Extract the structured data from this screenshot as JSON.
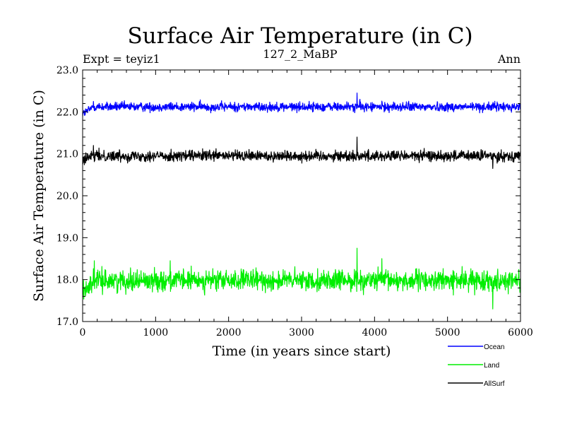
{
  "chart_data": {
    "type": "line",
    "title": "Surface Air Temperature (in C)",
    "subtitle": "127_2_MaBP",
    "expt_label": "Expt = teyiz1",
    "season_label": "Ann",
    "xlabel": "Time (in years since start)",
    "ylabel": "Surface Air Temperature (in C)",
    "xlim": [
      0,
      6000
    ],
    "ylim": [
      17.0,
      23.0
    ],
    "x_ticks": [
      0,
      1000,
      2000,
      3000,
      4000,
      5000,
      6000
    ],
    "y_ticks": [
      "17.0",
      "18.0",
      "19.0",
      "20.0",
      "21.0",
      "22.0",
      "23.0"
    ],
    "grid": false,
    "legend_position": "bottom-right",
    "series": [
      {
        "name": "Ocean",
        "color": "#0000ff",
        "start_value": 21.95,
        "mean": 22.12,
        "noise_amplitude": 0.1,
        "x_start": 0,
        "x_end": 6000,
        "notable_points": [
          [
            0,
            21.9
          ],
          [
            150,
            22.25
          ],
          [
            3760,
            22.45
          ],
          [
            3800,
            22.3
          ]
        ]
      },
      {
        "name": "Land",
        "color": "#00ee00",
        "start_value": 17.7,
        "mean": 17.98,
        "noise_amplitude": 0.22,
        "x_start": 0,
        "x_end": 6000,
        "notable_points": [
          [
            0,
            17.55
          ],
          [
            160,
            18.45
          ],
          [
            1200,
            18.45
          ],
          [
            3760,
            18.75
          ],
          [
            4100,
            18.5
          ],
          [
            5620,
            17.3
          ]
        ]
      },
      {
        "name": "AllSurf",
        "color": "#000000",
        "start_value": 20.85,
        "mean": 20.95,
        "noise_amplitude": 0.12,
        "x_start": 0,
        "x_end": 6000,
        "notable_points": [
          [
            0,
            20.75
          ],
          [
            150,
            21.2
          ],
          [
            3760,
            21.4
          ],
          [
            5620,
            20.65
          ]
        ]
      }
    ]
  }
}
